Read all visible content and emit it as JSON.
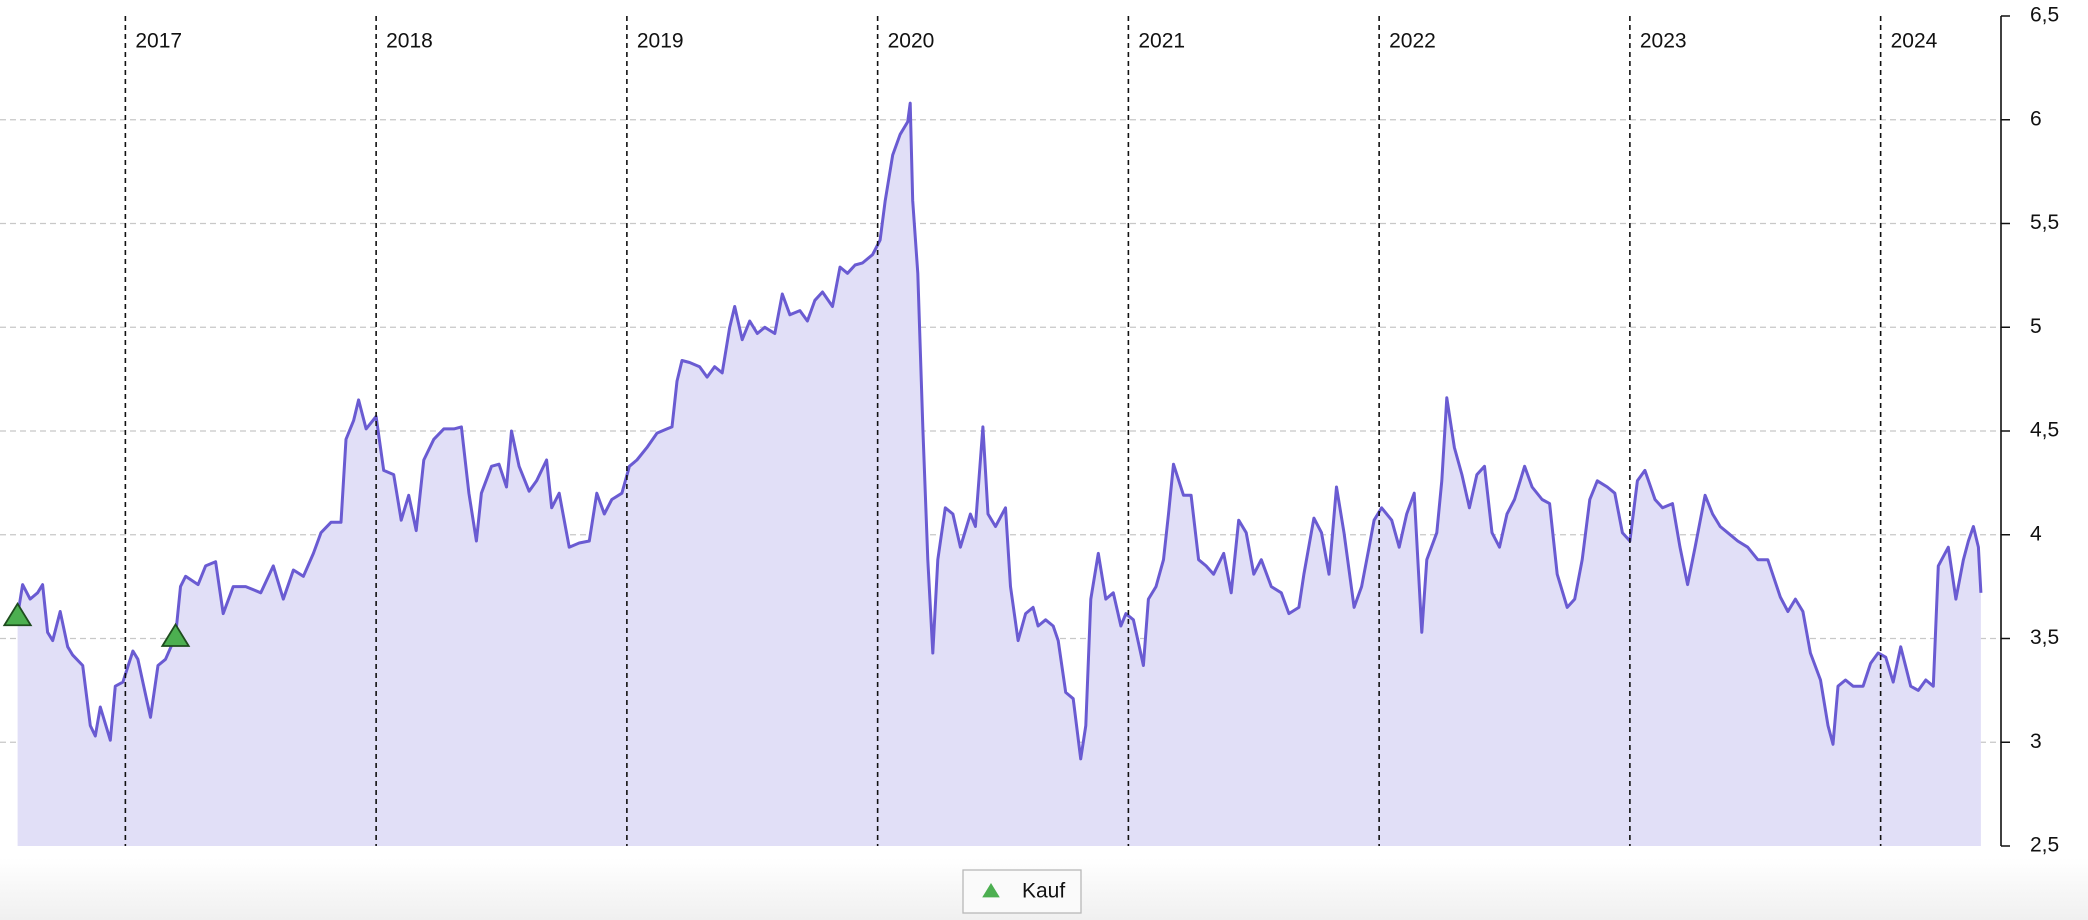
{
  "chart_data": {
    "type": "line",
    "color": "#6a5bd2",
    "fill_color": "#e1dff7",
    "xlim": [
      2016.5,
      2024.48
    ],
    "xticks": [
      2017,
      2018,
      2019,
      2020,
      2021,
      2022,
      2023,
      2024
    ],
    "ylim": [
      2.5,
      6.5
    ],
    "yticks": [
      {
        "value": 2.5,
        "label": "2,5"
      },
      3,
      {
        "value": 3.5,
        "label": "3,5"
      },
      4,
      {
        "value": 4.5,
        "label": "4,5"
      },
      5,
      {
        "value": 5.5,
        "label": "5,5"
      },
      6,
      {
        "value": 6.5,
        "label": "6,5"
      }
    ],
    "grid": true,
    "x": [
      2016.57,
      2016.59,
      2016.62,
      2016.65,
      2016.67,
      2016.69,
      2016.71,
      2016.74,
      2016.77,
      2016.79,
      2016.83,
      2016.86,
      2016.88,
      2016.9,
      2016.94,
      2016.96,
      2016.99,
      2017.03,
      2017.05,
      2017.1,
      2017.13,
      2017.16,
      2017.2,
      2017.22,
      2017.24,
      2017.29,
      2017.32,
      2017.36,
      2017.39,
      2017.43,
      2017.48,
      2017.54,
      2017.59,
      2017.63,
      2017.67,
      2017.71,
      2017.75,
      2017.78,
      2017.82,
      2017.86,
      2017.88,
      2017.91,
      2017.93,
      2017.96,
      2018.0,
      2018.03,
      2018.07,
      2018.1,
      2018.13,
      2018.16,
      2018.19,
      2018.23,
      2018.27,
      2018.31,
      2018.34,
      2018.37,
      2018.4,
      2018.42,
      2018.46,
      2018.49,
      2018.52,
      2018.54,
      2018.57,
      2018.61,
      2018.64,
      2018.68,
      2018.7,
      2018.73,
      2018.77,
      2018.81,
      2018.85,
      2018.88,
      2018.91,
      2018.94,
      2018.98,
      2019.01,
      2019.04,
      2019.08,
      2019.12,
      2019.16,
      2019.18,
      2019.2,
      2019.22,
      2019.25,
      2019.29,
      2019.32,
      2019.35,
      2019.38,
      2019.41,
      2019.43,
      2019.46,
      2019.49,
      2019.52,
      2019.55,
      2019.59,
      2019.62,
      2019.65,
      2019.69,
      2019.72,
      2019.75,
      2019.78,
      2019.82,
      2019.85,
      2019.88,
      2019.91,
      2019.94,
      2019.98,
      2020.01,
      2020.03,
      2020.06,
      2020.09,
      2020.12,
      2020.13,
      2020.14,
      2020.16,
      2020.18,
      2020.2,
      2020.22,
      2020.24,
      2020.27,
      2020.3,
      2020.33,
      2020.37,
      2020.39,
      2020.42,
      2020.44,
      2020.47,
      2020.51,
      2020.53,
      2020.56,
      2020.59,
      2020.62,
      2020.64,
      2020.67,
      2020.7,
      2020.72,
      2020.75,
      2020.78,
      2020.81,
      2020.83,
      2020.85,
      2020.88,
      2020.91,
      2020.94,
      2020.97,
      2020.99,
      2021.02,
      2021.06,
      2021.08,
      2021.11,
      2021.14,
      2021.16,
      2021.18,
      2021.22,
      2021.25,
      2021.28,
      2021.31,
      2021.34,
      2021.38,
      2021.41,
      2021.44,
      2021.47,
      2021.5,
      2021.53,
      2021.57,
      2021.61,
      2021.64,
      2021.68,
      2021.7,
      2021.74,
      2021.77,
      2021.8,
      2021.83,
      2021.86,
      2021.9,
      2021.93,
      2021.96,
      2021.98,
      2022.01,
      2022.05,
      2022.08,
      2022.11,
      2022.14,
      2022.17,
      2022.19,
      2022.23,
      2022.25,
      2022.27,
      2022.3,
      2022.33,
      2022.36,
      2022.39,
      2022.42,
      2022.45,
      2022.48,
      2022.51,
      2022.54,
      2022.58,
      2022.61,
      2022.65,
      2022.68,
      2022.71,
      2022.75,
      2022.78,
      2022.81,
      2022.84,
      2022.87,
      2022.91,
      2022.94,
      2022.97,
      2023.0,
      2023.03,
      2023.06,
      2023.1,
      2023.13,
      2023.17,
      2023.2,
      2023.23,
      2023.26,
      2023.3,
      2023.33,
      2023.36,
      2023.39,
      2023.43,
      2023.47,
      2023.51,
      2023.55,
      2023.6,
      2023.63,
      2023.66,
      2023.69,
      2023.72,
      2023.76,
      2023.79,
      2023.81,
      2023.83,
      2023.86,
      2023.89,
      2023.93,
      2023.96,
      2023.99,
      2024.02,
      2024.05,
      2024.08,
      2024.12,
      2024.15,
      2024.18,
      2024.21,
      2024.23,
      2024.27,
      2024.3,
      2024.33,
      2024.35,
      2024.37,
      2024.39,
      2024.4
    ],
    "values": [
      3.61,
      3.76,
      3.69,
      3.72,
      3.76,
      3.53,
      3.49,
      3.63,
      3.46,
      3.42,
      3.37,
      3.08,
      3.03,
      3.17,
      3.01,
      3.27,
      3.29,
      3.44,
      3.4,
      3.12,
      3.37,
      3.4,
      3.51,
      3.75,
      3.8,
      3.76,
      3.85,
      3.87,
      3.62,
      3.75,
      3.75,
      3.72,
      3.85,
      3.69,
      3.83,
      3.8,
      3.91,
      4.01,
      4.06,
      4.06,
      4.46,
      4.55,
      4.65,
      4.51,
      4.57,
      4.31,
      4.29,
      4.07,
      4.19,
      4.02,
      4.36,
      4.46,
      4.51,
      4.51,
      4.52,
      4.2,
      3.97,
      4.2,
      4.33,
      4.34,
      4.23,
      4.5,
      4.33,
      4.21,
      4.26,
      4.36,
      4.13,
      4.2,
      3.94,
      3.96,
      3.97,
      4.2,
      4.1,
      4.17,
      4.2,
      4.33,
      4.36,
      4.42,
      4.49,
      4.51,
      4.52,
      4.74,
      4.84,
      4.83,
      4.81,
      4.76,
      4.81,
      4.78,
      5.0,
      5.1,
      4.94,
      5.03,
      4.97,
      5.0,
      4.97,
      5.16,
      5.06,
      5.08,
      5.03,
      5.13,
      5.17,
      5.1,
      5.29,
      5.26,
      5.3,
      5.31,
      5.35,
      5.42,
      5.61,
      5.83,
      5.93,
      5.99,
      6.08,
      5.61,
      5.26,
      4.52,
      3.88,
      3.43,
      3.88,
      4.13,
      4.1,
      3.94,
      4.1,
      4.04,
      4.52,
      4.1,
      4.04,
      4.13,
      3.75,
      3.49,
      3.62,
      3.65,
      3.56,
      3.59,
      3.56,
      3.49,
      3.24,
      3.21,
      2.92,
      3.08,
      3.69,
      3.91,
      3.69,
      3.72,
      3.56,
      3.62,
      3.59,
      3.37,
      3.69,
      3.75,
      3.88,
      4.1,
      4.34,
      4.19,
      4.19,
      3.88,
      3.85,
      3.81,
      3.91,
      3.72,
      4.07,
      4.01,
      3.81,
      3.88,
      3.75,
      3.72,
      3.62,
      3.65,
      3.81,
      4.08,
      4.01,
      3.81,
      4.23,
      4.01,
      3.65,
      3.75,
      3.94,
      4.07,
      4.13,
      4.07,
      3.94,
      4.1,
      4.2,
      3.53,
      3.88,
      4.01,
      4.26,
      4.66,
      4.42,
      4.29,
      4.13,
      4.29,
      4.33,
      4.01,
      3.94,
      4.1,
      4.17,
      4.33,
      4.23,
      4.17,
      4.15,
      3.81,
      3.65,
      3.69,
      3.88,
      4.17,
      4.26,
      4.23,
      4.2,
      4.01,
      3.97,
      4.26,
      4.31,
      4.17,
      4.13,
      4.15,
      3.94,
      3.76,
      3.94,
      4.19,
      4.1,
      4.04,
      4.01,
      3.97,
      3.94,
      3.88,
      3.88,
      3.7,
      3.63,
      3.69,
      3.63,
      3.43,
      3.3,
      3.08,
      2.99,
      3.27,
      3.3,
      3.27,
      3.27,
      3.38,
      3.43,
      3.41,
      3.29,
      3.46,
      3.27,
      3.25,
      3.3,
      3.27,
      3.85,
      3.94,
      3.69,
      3.88,
      3.97,
      4.04,
      3.94,
      3.72
    ],
    "markers": {
      "name": "Kauf",
      "color": "#4caf50",
      "x": [
        2016.57,
        2017.2
      ],
      "values": [
        3.61,
        3.51
      ]
    }
  }
}
